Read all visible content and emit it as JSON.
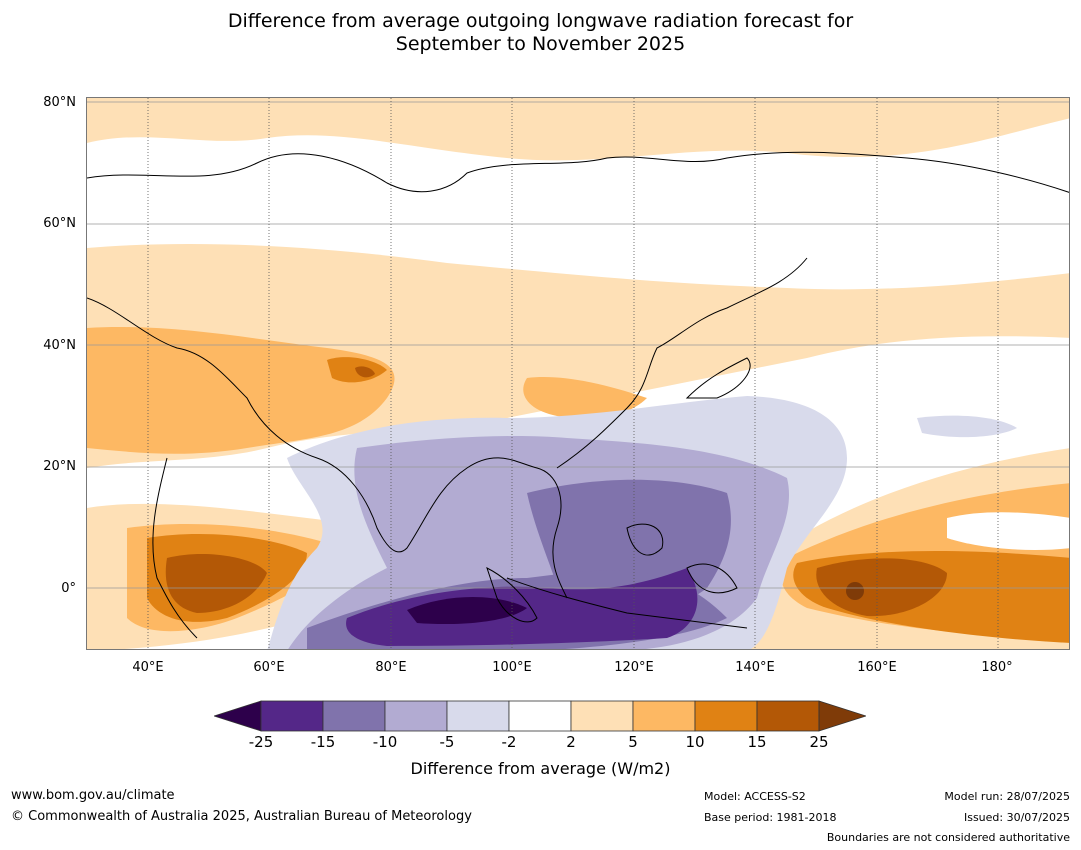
{
  "title": {
    "line1": "Difference from average outgoing longwave radiation forecast for",
    "line2": "September to November 2025"
  },
  "map": {
    "lat_labels": [
      "80°N",
      "60°N",
      "40°N",
      "20°N",
      "0°"
    ],
    "lon_labels": [
      "40°E",
      "60°E",
      "80°E",
      "100°E",
      "120°E",
      "140°E",
      "160°E",
      "180°"
    ]
  },
  "colorbar": {
    "ticks": [
      "-25",
      "-15",
      "-10",
      "-5",
      "-2",
      "2",
      "5",
      "10",
      "15",
      "25"
    ],
    "colors": {
      "lt_-25": "#2d004b",
      "-25_-15": "#542788",
      "-15_-10": "#8073ac",
      "-10_-5": "#b2abd2",
      "-5_-2": "#d8daeb",
      "-2_2": "#ffffff",
      "2_5": "#fee0b6",
      "5_10": "#fdb863",
      "10_15": "#e08214",
      "15_25": "#b35806",
      "gt_25": "#7f3b08"
    },
    "title": "Difference from average (W/m2)"
  },
  "footer": {
    "url": "www.bom.gov.au/climate",
    "copyright": "© Commonwealth of Australia 2025, Australian Bureau of Meteorology",
    "model": "Model: ACCESS-S2",
    "base_period": "Base period: 1981-2018",
    "model_run": "Model run: 28/07/2025",
    "issued": "Issued: 30/07/2025",
    "disclaimer": "Boundaries are not considered authoritative"
  }
}
